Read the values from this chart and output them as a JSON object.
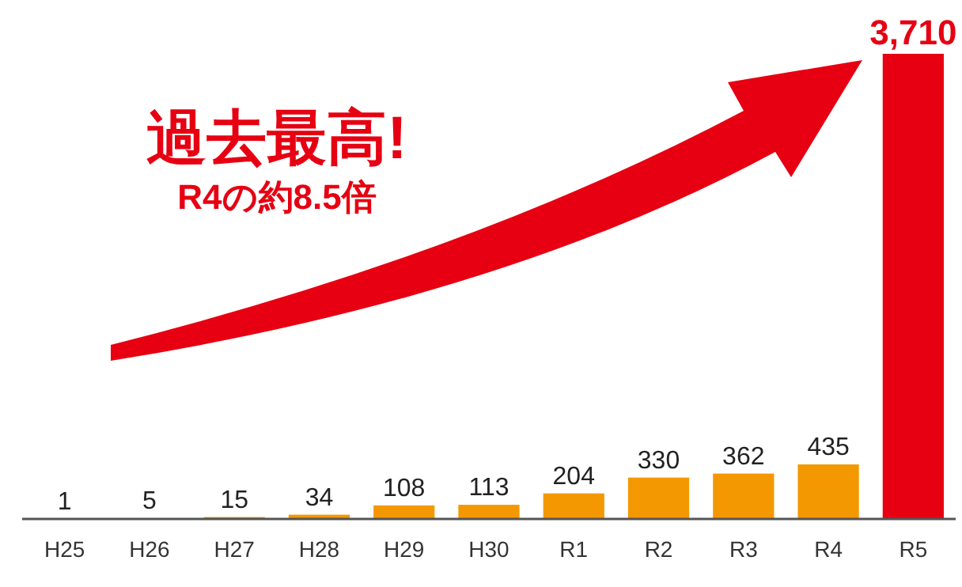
{
  "chart_data": {
    "type": "bar",
    "categories": [
      "H25",
      "H26",
      "H27",
      "H28",
      "H29",
      "H30",
      "R1",
      "R2",
      "R3",
      "R4",
      "R5"
    ],
    "values": [
      1,
      5,
      15,
      34,
      108,
      113,
      204,
      330,
      362,
      435,
      3710
    ],
    "colors": [
      "#f39800",
      "#f39800",
      "#f39800",
      "#f39800",
      "#f39800",
      "#f39800",
      "#f39800",
      "#f39800",
      "#f39800",
      "#f39800",
      "#e60012"
    ],
    "value_labels": [
      "1",
      "5",
      "15",
      "34",
      "108",
      "113",
      "204",
      "330",
      "362",
      "435",
      "3,710"
    ],
    "annotations": [
      "過去最高!",
      "R4の約8.5倍"
    ]
  }
}
